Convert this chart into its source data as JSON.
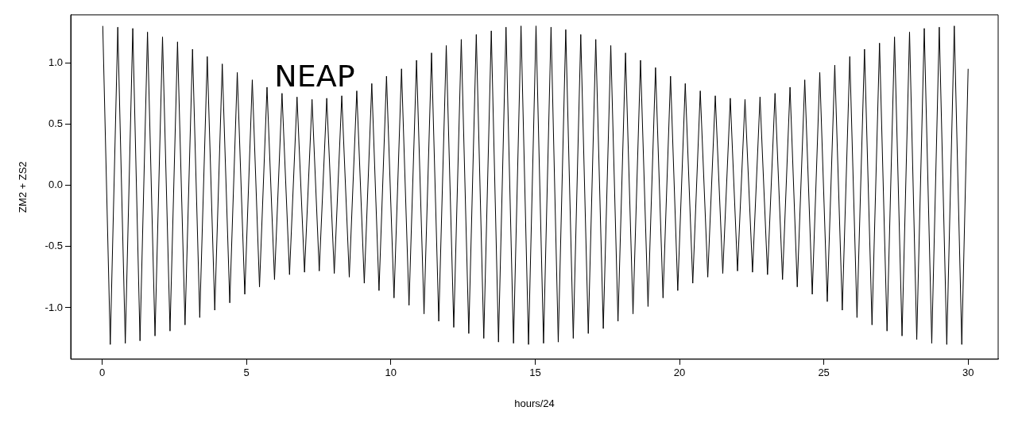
{
  "chart_data": {
    "type": "line",
    "xlabel": "hours/24",
    "ylabel": "ZM2 + ZS2",
    "x": [
      0.02,
      0.28,
      0.54,
      0.8,
      1.06,
      1.31,
      1.57,
      1.83,
      2.09,
      2.35,
      2.61,
      2.87,
      3.13,
      3.38,
      3.64,
      3.9,
      4.16,
      4.42,
      4.68,
      4.94,
      5.2,
      5.45,
      5.71,
      5.97,
      6.23,
      6.49,
      6.75,
      7.01,
      7.27,
      7.52,
      7.78,
      8.04,
      8.3,
      8.56,
      8.82,
      9.08,
      9.34,
      9.59,
      9.85,
      10.11,
      10.37,
      10.63,
      10.89,
      11.15,
      11.41,
      11.66,
      11.92,
      12.18,
      12.44,
      12.7,
      12.96,
      13.22,
      13.48,
      13.73,
      13.99,
      14.25,
      14.51,
      14.77,
      15.03,
      15.29,
      15.55,
      15.8,
      16.06,
      16.32,
      16.58,
      16.84,
      17.1,
      17.36,
      17.62,
      17.87,
      18.13,
      18.39,
      18.65,
      18.91,
      19.17,
      19.43,
      19.69,
      19.94,
      20.2,
      20.46,
      20.72,
      20.98,
      21.24,
      21.5,
      21.76,
      22.01,
      22.27,
      22.53,
      22.79,
      23.05,
      23.31,
      23.57,
      23.83,
      24.08,
      24.34,
      24.6,
      24.86,
      25.12,
      25.38,
      25.64,
      25.9,
      26.15,
      26.41,
      26.67,
      26.93,
      27.19,
      27.45,
      27.71,
      27.97,
      28.22,
      28.48,
      28.74,
      29.0,
      29.26,
      29.52,
      29.78,
      30.0
    ],
    "series": [
      {
        "color": "#000000",
        "values": [
          1.3,
          -1.3,
          1.29,
          -1.29,
          1.28,
          -1.27,
          1.25,
          -1.23,
          1.21,
          -1.19,
          1.17,
          -1.14,
          1.11,
          -1.08,
          1.05,
          -1.02,
          0.99,
          -0.96,
          0.92,
          -0.89,
          0.86,
          -0.83,
          0.8,
          -0.77,
          0.75,
          -0.73,
          0.72,
          -0.71,
          0.7,
          -0.7,
          0.71,
          -0.72,
          0.73,
          -0.75,
          0.77,
          -0.8,
          0.83,
          -0.86,
          0.89,
          -0.92,
          0.95,
          -0.98,
          1.02,
          -1.05,
          1.08,
          -1.11,
          1.14,
          -1.16,
          1.19,
          -1.21,
          1.23,
          -1.25,
          1.26,
          -1.28,
          1.29,
          -1.29,
          1.3,
          -1.3,
          1.3,
          -1.29,
          1.29,
          -1.28,
          1.27,
          -1.25,
          1.23,
          -1.21,
          1.19,
          -1.17,
          1.14,
          -1.11,
          1.08,
          -1.05,
          1.02,
          -0.99,
          0.96,
          -0.92,
          0.89,
          -0.86,
          0.83,
          -0.8,
          0.77,
          -0.75,
          0.73,
          -0.72,
          0.71,
          -0.7,
          0.7,
          -0.71,
          0.72,
          -0.73,
          0.75,
          -0.77,
          0.8,
          -0.83,
          0.86,
          -0.89,
          0.92,
          -0.95,
          0.98,
          -1.02,
          1.05,
          -1.08,
          1.11,
          -1.14,
          1.16,
          -1.19,
          1.21,
          -1.23,
          1.25,
          -1.26,
          1.28,
          -1.29,
          1.29,
          -1.3,
          1.3,
          -1.3,
          0.95
        ]
      }
    ],
    "annotations": [
      "NEAP"
    ],
    "xlim": [
      -1.09,
      31.04
    ],
    "xticks": [
      0,
      5,
      10,
      15,
      20,
      25,
      30
    ],
    "ylim": [
      -1.42,
      1.39
    ],
    "yticks": [
      {
        "value": -1,
        "label": "-1.0"
      },
      {
        "value": -0.5,
        "label": "-0.5"
      },
      {
        "value": 0,
        "label": "0.0"
      },
      {
        "value": 0.5,
        "label": "0.5"
      },
      {
        "value": 1,
        "label": "1.0"
      }
    ],
    "grid": false,
    "legend": false,
    "marker": "none",
    "line_style": "solid"
  }
}
